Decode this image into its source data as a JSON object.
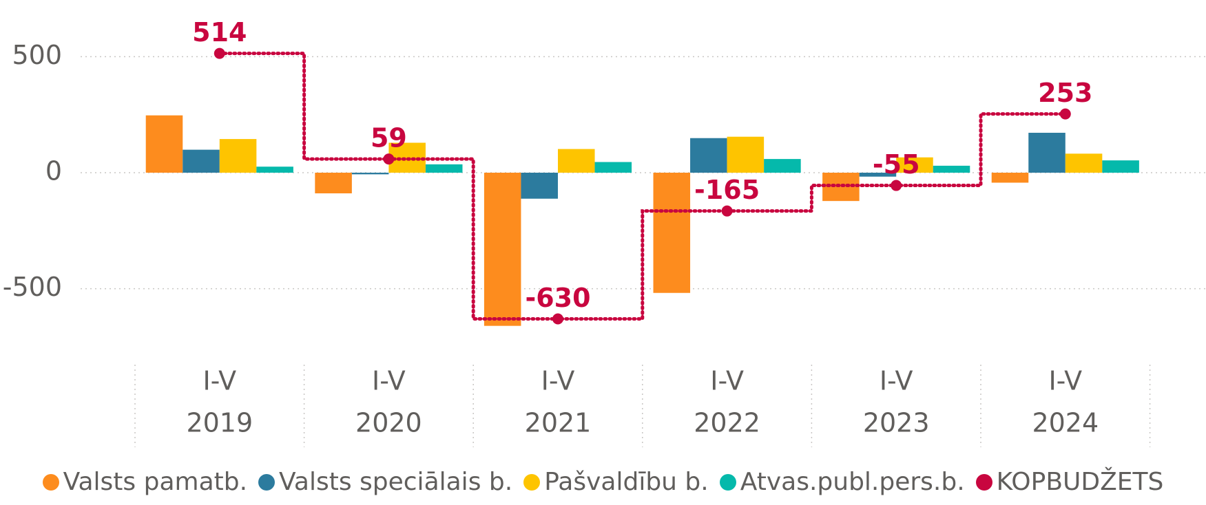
{
  "chart_data": {
    "type": "bar",
    "categories": [
      [
        "I-V",
        "2019"
      ],
      [
        "I-V",
        "2020"
      ],
      [
        "I-V",
        "2021"
      ],
      [
        "I-V",
        "2022"
      ],
      [
        "I-V",
        "2023"
      ],
      [
        "I-V",
        "2024"
      ]
    ],
    "series": [
      {
        "name": "Valsts pamatb.",
        "color": "#fd8c1e",
        "values": [
          247,
          -89,
          -660,
          -518,
          -122,
          -43
        ]
      },
      {
        "name": "Valsts speciālais b.",
        "color": "#2c7b9e",
        "values": [
          99,
          -7,
          -112,
          149,
          -17,
          172
        ]
      },
      {
        "name": "Pašvaldību b.",
        "color": "#fec400",
        "values": [
          145,
          129,
          102,
          155,
          66,
          82
        ]
      },
      {
        "name": "Atvas.publ.pers.b.",
        "color": "#05b9ab",
        "values": [
          26,
          36,
          46,
          59,
          30,
          53
        ]
      },
      {
        "name": "KOPBUDŽETS",
        "color": "#c8063f",
        "type": "line",
        "values": [
          514,
          59,
          -630,
          -165,
          -55,
          253
        ]
      }
    ],
    "ylim": [
      -750,
      750
    ],
    "yticks": [
      -500,
      0,
      500
    ],
    "grid": true,
    "data_labels": true
  }
}
